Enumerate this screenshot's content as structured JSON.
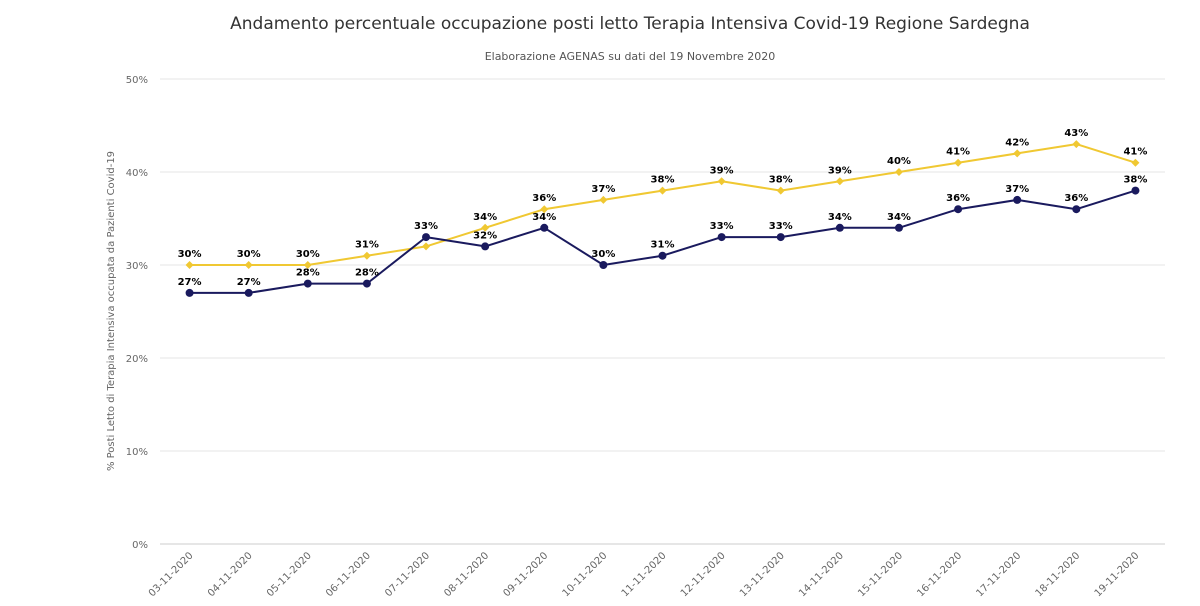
{
  "title": "Andamento percentuale occupazione posti letto Terapia Intensiva Covid-19 Regione Sardegna",
  "subtitle": "Elaborazione AGENAS su dati del 19 Novembre 2020",
  "chart_data": {
    "type": "line",
    "title": "Andamento percentuale occupazione posti letto Terapia Intensiva Covid-19 Regione Sardegna",
    "subtitle": "Elaborazione AGENAS su dati del 19 Novembre 2020",
    "xlabel": "",
    "ylabel": "% Posti Letto di Terapia Intensiva occupata da Pazienti Covid-19",
    "ylim": [
      0,
      50
    ],
    "yticks": [
      "0%",
      "10%",
      "20%",
      "30%",
      "40%",
      "50%"
    ],
    "grid": true,
    "categories": [
      "03-11-2020",
      "04-11-2020",
      "05-11-2020",
      "06-11-2020",
      "07-11-2020",
      "08-11-2020",
      "09-11-2020",
      "10-11-2020",
      "11-11-2020",
      "12-11-2020",
      "13-11-2020",
      "14-11-2020",
      "15-11-2020",
      "16-11-2020",
      "17-11-2020",
      "18-11-2020",
      "19-11-2020"
    ],
    "series": [
      {
        "color": "#f0c832",
        "marker": "diamond",
        "values": [
          30,
          30,
          30,
          31,
          32,
          34,
          36,
          37,
          38,
          39,
          38,
          39,
          40,
          41,
          42,
          43,
          41
        ],
        "labels": [
          "30%",
          "30%",
          "30%",
          "31%",
          "",
          "34%",
          "36%",
          "37%",
          "38%",
          "39%",
          "38%",
          "39%",
          "40%",
          "41%",
          "42%",
          "43%",
          "41%"
        ]
      },
      {
        "color": "#1a1a5e",
        "marker": "circle",
        "values": [
          27,
          27,
          28,
          28,
          33,
          32,
          34,
          30,
          31,
          33,
          33,
          34,
          34,
          36,
          37,
          36,
          38
        ],
        "labels": [
          "27%",
          "27%",
          "28%",
          "28%",
          "33%",
          "32%",
          "34%",
          "30%",
          "31%",
          "33%",
          "33%",
          "34%",
          "34%",
          "36%",
          "37%",
          "36%",
          "38%"
        ]
      }
    ]
  }
}
